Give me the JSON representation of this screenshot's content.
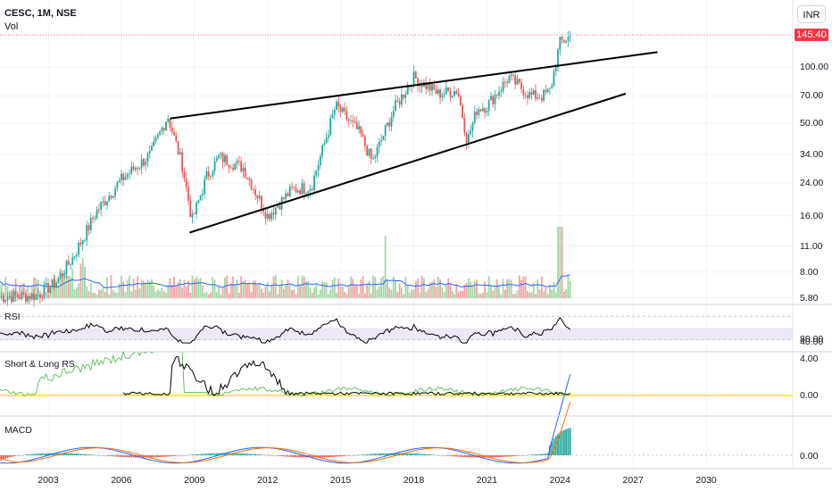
{
  "header": {
    "symbol": "CESC, 1M, NSE",
    "volume_label": "Vol",
    "currency_button": "INR",
    "last_price": "145.40",
    "price_tag_color": "#f23645"
  },
  "price_axis": {
    "ticks": [
      "100.00",
      "70.00",
      "50.00",
      "34.00",
      "24.00",
      "16.00",
      "11.00",
      "8.00",
      "5.80"
    ]
  },
  "time_axis": {
    "ticks": [
      "2003",
      "2006",
      "2009",
      "2012",
      "2015",
      "2018",
      "2021",
      "2024",
      "2027",
      "2030"
    ]
  },
  "panes": {
    "rsi": {
      "label": "RSI",
      "ticks": [
        "80.00",
        "40.00"
      ]
    },
    "rs": {
      "label": "Short & Long RS",
      "ticks": [
        "4.00",
        "0.00"
      ]
    },
    "macd": {
      "label": "MACD",
      "ticks": [
        "0.00"
      ]
    }
  },
  "colors": {
    "up": "#26a69a",
    "down": "#ef5350",
    "vol_up": "#a5d6a7",
    "vol_down": "#f4a3a7",
    "vol_ma": "#2962ff",
    "trendline": "#000000",
    "rsi_band": "#ede7f6",
    "rs_zero": "#ffeb3b",
    "rs_short": "#4caf50",
    "macd_line": "#2962ff",
    "signal_line": "#ff6d00"
  },
  "chart_data": [
    {
      "type": "candlestick",
      "title": "CESC, 1M, NSE",
      "scale": "log",
      "currency": "INR",
      "ylim": [
        5.5,
        150
      ],
      "last_price": 145.4,
      "price_path": [
        {
          "date": "2001.0",
          "close": 5.9
        },
        {
          "date": "2002.5",
          "close": 6.0
        },
        {
          "date": "2003.3",
          "close": 7.0
        },
        {
          "date": "2004.0",
          "close": 9.5
        },
        {
          "date": "2005.0",
          "close": 17.0
        },
        {
          "date": "2006.0",
          "close": 25.0
        },
        {
          "date": "2007.2",
          "close": 34.0
        },
        {
          "date": "2007.9",
          "close": 55.0
        },
        {
          "date": "2008.5",
          "close": 30.0
        },
        {
          "date": "2008.9",
          "close": 15.0
        },
        {
          "date": "2009.5",
          "close": 26.0
        },
        {
          "date": "2010.0",
          "close": 33.0
        },
        {
          "date": "2011.0",
          "close": 29.0
        },
        {
          "date": "2012.0",
          "close": 16.0
        },
        {
          "date": "2013.0",
          "close": 22.0
        },
        {
          "date": "2013.8",
          "close": 23.0
        },
        {
          "date": "2014.8",
          "close": 62.0
        },
        {
          "date": "2015.8",
          "close": 44.0
        },
        {
          "date": "2016.3",
          "close": 31.0
        },
        {
          "date": "2017.2",
          "close": 60.0
        },
        {
          "date": "2018.0",
          "close": 88.0
        },
        {
          "date": "2019.0",
          "close": 72.0
        },
        {
          "date": "2019.8",
          "close": 75.0
        },
        {
          "date": "2020.2",
          "close": 40.0
        },
        {
          "date": "2020.6",
          "close": 60.0
        },
        {
          "date": "2021.0",
          "close": 62.0
        },
        {
          "date": "2021.9",
          "close": 88.0
        },
        {
          "date": "2022.8",
          "close": 70.0
        },
        {
          "date": "2023.3",
          "close": 70.0
        },
        {
          "date": "2023.6",
          "close": 75.0
        },
        {
          "date": "2024.0",
          "close": 135.0
        },
        {
          "date": "2024.4",
          "close": 145.4
        }
      ],
      "trendlines": [
        {
          "name": "upper",
          "from": {
            "date": "2008.0",
            "price": 53.0
          },
          "to": {
            "date": "2028.0",
            "price": 120.0
          }
        },
        {
          "name": "lower",
          "from": {
            "date": "2008.8",
            "price": 13.0
          },
          "to": {
            "date": "2026.7",
            "price": 72.0
          }
        }
      ],
      "volume": {
        "peak_date": "2024.0",
        "ylim": [
          0,
          1
        ]
      }
    },
    {
      "type": "line",
      "title": "RSI",
      "ylim": [
        20,
        100
      ],
      "bands": [
        40,
        80
      ],
      "range": [
        35,
        95
      ]
    },
    {
      "type": "line",
      "title": "Short & Long RS",
      "ylim": [
        -1,
        4
      ]
    },
    {
      "type": "bar",
      "title": "MACD",
      "reference_line": 0
    }
  ]
}
